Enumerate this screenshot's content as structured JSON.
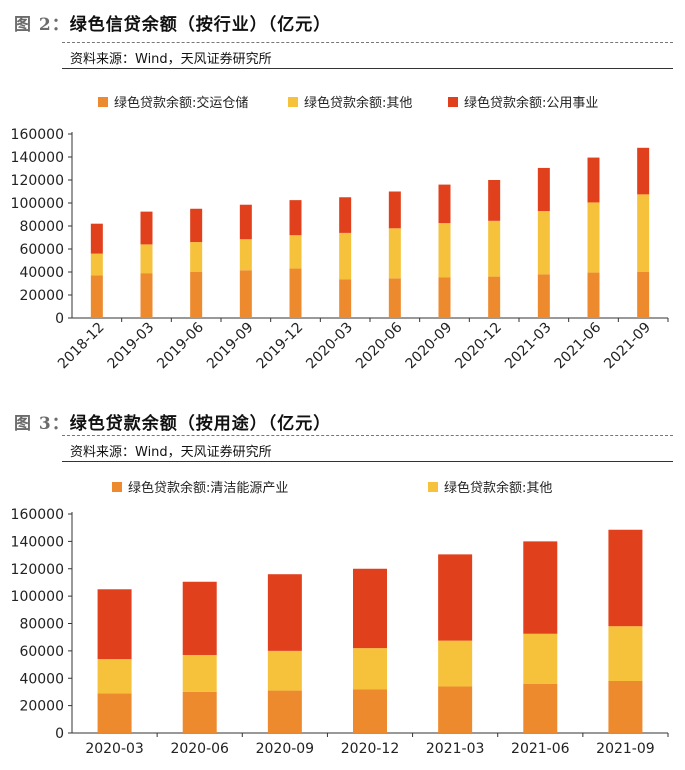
{
  "colors": {
    "orange": "#EE8A2E",
    "yellow": "#F7C23B",
    "red": "#E0401B"
  },
  "fig1": {
    "num": "图 2：",
    "title": "绿色信贷余额（按行业）（亿元）",
    "source": "资料来源：Wind，天风证券研究所"
  },
  "fig2": {
    "num": "图 3：",
    "title": "绿色贷款余额（按用途）（亿元）",
    "source": "资料来源：Wind，天风证券研究所"
  },
  "chart_data": [
    {
      "type": "bar",
      "stacked": true,
      "categories": [
        "2018-12",
        "2019-03",
        "2019-06",
        "2019-09",
        "2019-12",
        "2020-03",
        "2020-06",
        "2020-09",
        "2020-12",
        "2021-03",
        "2021-06",
        "2021-09"
      ],
      "series": [
        {
          "name": "绿色贷款余额:交运仓储",
          "values": [
            37000,
            39000,
            40000,
            41500,
            43000,
            33500,
            34500,
            35500,
            36000,
            38000,
            39500,
            40000
          ]
        },
        {
          "name": "绿色贷款余额:其他",
          "values": [
            19000,
            25000,
            26000,
            27000,
            29000,
            40500,
            43500,
            47000,
            48500,
            55000,
            61000,
            67500
          ]
        },
        {
          "name": "绿色贷款余额:公用事业",
          "values": [
            26000,
            28500,
            29000,
            30000,
            30500,
            31000,
            32000,
            33500,
            35500,
            37500,
            39000,
            40500
          ]
        }
      ],
      "yticks": [
        0,
        20000,
        40000,
        60000,
        80000,
        100000,
        120000,
        140000,
        160000
      ],
      "ylim": [
        0,
        160000
      ],
      "grid": false,
      "legend": "top"
    },
    {
      "type": "bar",
      "stacked": true,
      "categories": [
        "2020-03",
        "2020-06",
        "2020-09",
        "2020-12",
        "2021-03",
        "2021-06",
        "2021-09"
      ],
      "series": [
        {
          "name": "绿色贷款余额:清洁能源产业",
          "values": [
            29000,
            30000,
            31000,
            32000,
            34000,
            36000,
            38000
          ]
        },
        {
          "name": "绿色贷款余额:其他",
          "values": [
            25000,
            27000,
            29000,
            30000,
            33500,
            36500,
            40000
          ]
        },
        {
          "name": "",
          "values": [
            51000,
            53500,
            56000,
            58000,
            63000,
            67500,
            70500
          ]
        }
      ],
      "yticks": [
        0,
        20000,
        40000,
        60000,
        80000,
        100000,
        120000,
        140000,
        160000
      ],
      "ylim": [
        0,
        160000
      ],
      "grid": false,
      "legend": "top"
    }
  ]
}
